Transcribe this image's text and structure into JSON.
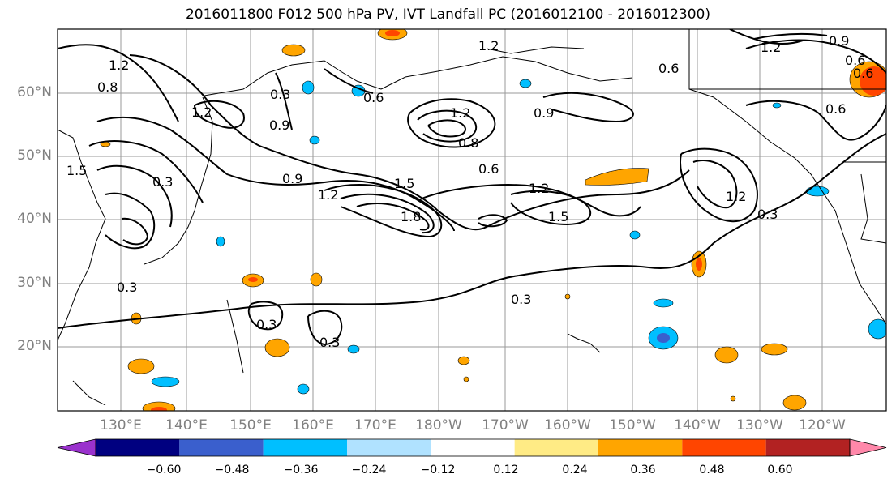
{
  "title": "2016011800 F012 500 hPa PV, IVT Landfall PC (2016012100 - 2016012300)",
  "lat_labels": [
    "60°N",
    "50°N",
    "40°N",
    "30°N",
    "20°N"
  ],
  "lon_labels": [
    "130°E",
    "140°E",
    "150°E",
    "160°E",
    "170°E",
    "180°W",
    "170°W",
    "160°W",
    "150°W",
    "140°W",
    "130°W",
    "120°W"
  ],
  "contour_labels": [
    "1.2",
    "0.8",
    "1.2",
    "0.3",
    "0.6",
    "0.9",
    "1.2",
    "0.9",
    "0.6",
    "0.6",
    "1.2",
    "0.8",
    "0.6",
    "1.5",
    "0.3",
    "0.9",
    "1.2",
    "1.5",
    "1.8",
    "1.2",
    "1.5",
    "1.2",
    "0.3",
    "0.3",
    "0.3",
    "0.3",
    "0.3",
    "0.6",
    "0.9",
    "0.6",
    "1.2"
  ],
  "colorbar": {
    "ticks": [
      "−0.60",
      "−0.48",
      "−0.36",
      "−0.24",
      "−0.12",
      "0.12",
      "0.24",
      "0.36",
      "0.48",
      "0.60"
    ],
    "colors": [
      "#9a32cd",
      "#000080",
      "#3a5fcd",
      "#00bfff",
      "#b0e2ff",
      "#ffffff",
      "#ffeb85",
      "#ffa500",
      "#ff4500",
      "#b22222",
      "#ff88aa"
    ]
  }
}
